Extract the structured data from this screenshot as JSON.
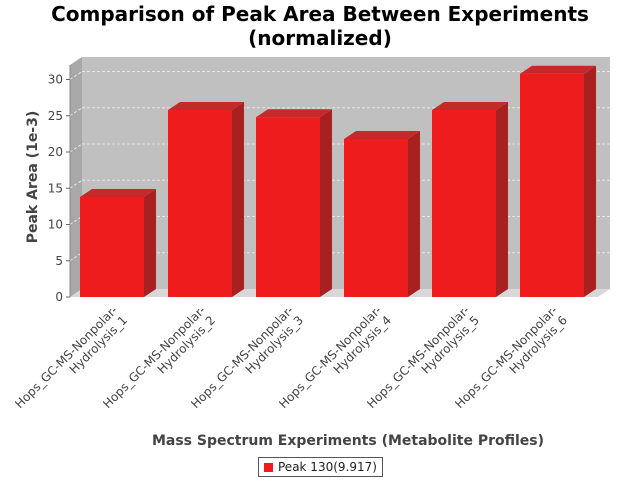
{
  "chart_data": {
    "type": "bar",
    "title_lines": [
      "Comparison of Peak Area Between Experiments",
      "(normalized)"
    ],
    "xlabel": "Mass Spectrum Experiments (Metabolite Profiles)",
    "ylabel": "Peak Area (1e-3)",
    "ylim": [
      0,
      32
    ],
    "yticks": [
      0,
      5,
      10,
      15,
      20,
      25,
      30
    ],
    "grid": true,
    "legend_position": "bottom",
    "categories": [
      "Hops_GC-MS-Nonpolar-Hydrolysis_1",
      "Hops_GC-MS-Nonpolar-Hydrolysis_2",
      "Hops_GC-MS-Nonpolar-Hydrolysis_3",
      "Hops_GC-MS-Nonpolar-Hydrolysis_4",
      "Hops_GC-MS-Nonpolar-Hydrolysis_5",
      "Hops_GC-MS-Nonpolar-Hydrolysis_6"
    ],
    "category_lines": [
      [
        "Hops_GC-MS-Nonpolar-",
        "Hydrolysis_1"
      ],
      [
        "Hops_GC-MS-Nonpolar-",
        "Hydrolysis_2"
      ],
      [
        "Hops_GC-MS-Nonpolar-",
        "Hydrolysis_3"
      ],
      [
        "Hops_GC-MS-Nonpolar-",
        "Hydrolysis_4"
      ],
      [
        "Hops_GC-MS-Nonpolar-",
        "Hydrolysis_5"
      ],
      [
        "Hops_GC-MS-Nonpolar-",
        "Hydrolysis_6"
      ]
    ],
    "series": [
      {
        "name": "Peak 130(9.917)",
        "values": [
          13.8,
          25.8,
          24.8,
          21.8,
          25.8,
          30.8
        ]
      }
    ],
    "colors": {
      "bar_front": "#ee1c1c",
      "bar_side": "#a82020",
      "bar_top": "#c42a2a",
      "plot_back": "#c0c0c0",
      "plot_floor": "#d8d8d8",
      "plot_wall": "#a8a8a8"
    }
  }
}
